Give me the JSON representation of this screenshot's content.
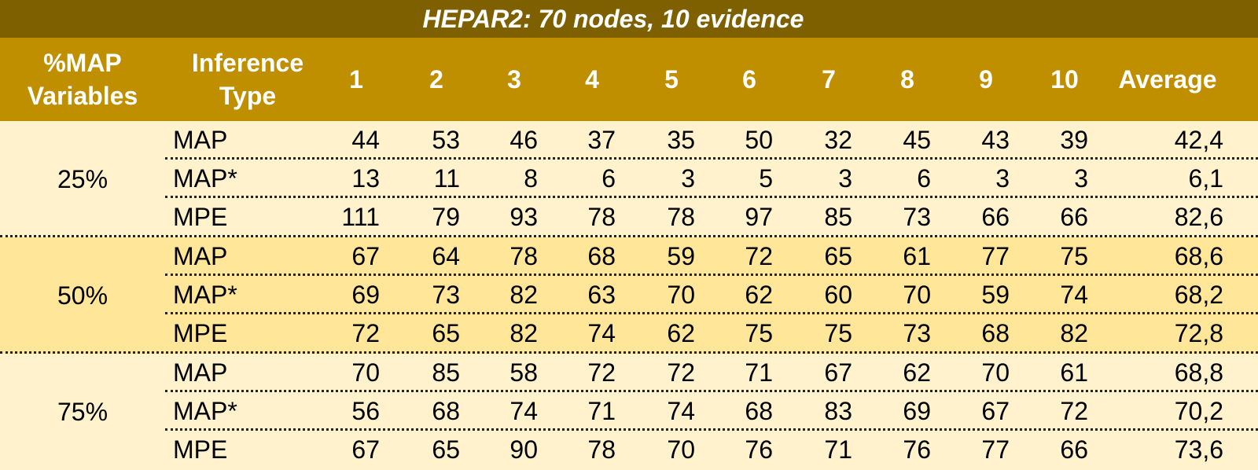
{
  "title": "HEPAR2: 70 nodes, 10 evidence",
  "headers": {
    "map_vars": "%MAP\nVariables",
    "inference": "Inference\nType",
    "cols": [
      "1",
      "2",
      "3",
      "4",
      "5",
      "6",
      "7",
      "8",
      "9",
      "10"
    ],
    "average": "Average"
  },
  "groups": [
    {
      "label": "25%",
      "rows": [
        {
          "type": "MAP",
          "values": [
            "44",
            "53",
            "46",
            "37",
            "35",
            "50",
            "32",
            "45",
            "43",
            "39"
          ],
          "avg": "42,4"
        },
        {
          "type": "MAP*",
          "values": [
            "13",
            "11",
            "8",
            "6",
            "3",
            "5",
            "3",
            "6",
            "3",
            "3"
          ],
          "avg": "6,1"
        },
        {
          "type": "MPE",
          "values": [
            "111",
            "79",
            "93",
            "78",
            "78",
            "97",
            "85",
            "73",
            "66",
            "66"
          ],
          "avg": "82,6"
        }
      ]
    },
    {
      "label": "50%",
      "rows": [
        {
          "type": "MAP",
          "values": [
            "67",
            "64",
            "78",
            "68",
            "59",
            "72",
            "65",
            "61",
            "77",
            "75"
          ],
          "avg": "68,6"
        },
        {
          "type": "MAP*",
          "values": [
            "69",
            "73",
            "82",
            "63",
            "70",
            "62",
            "60",
            "70",
            "59",
            "74"
          ],
          "avg": "68,2"
        },
        {
          "type": "MPE",
          "values": [
            "72",
            "65",
            "82",
            "74",
            "62",
            "75",
            "75",
            "73",
            "68",
            "82"
          ],
          "avg": "72,8"
        }
      ]
    },
    {
      "label": "75%",
      "rows": [
        {
          "type": "MAP",
          "values": [
            "70",
            "85",
            "58",
            "72",
            "72",
            "71",
            "67",
            "62",
            "70",
            "61"
          ],
          "avg": "68,8"
        },
        {
          "type": "MAP*",
          "values": [
            "56",
            "68",
            "74",
            "71",
            "74",
            "68",
            "83",
            "69",
            "67",
            "72"
          ],
          "avg": "70,2"
        },
        {
          "type": "MPE",
          "values": [
            "67",
            "65",
            "90",
            "78",
            "70",
            "76",
            "71",
            "76",
            "77",
            "66"
          ],
          "avg": "73,6"
        }
      ]
    }
  ]
}
